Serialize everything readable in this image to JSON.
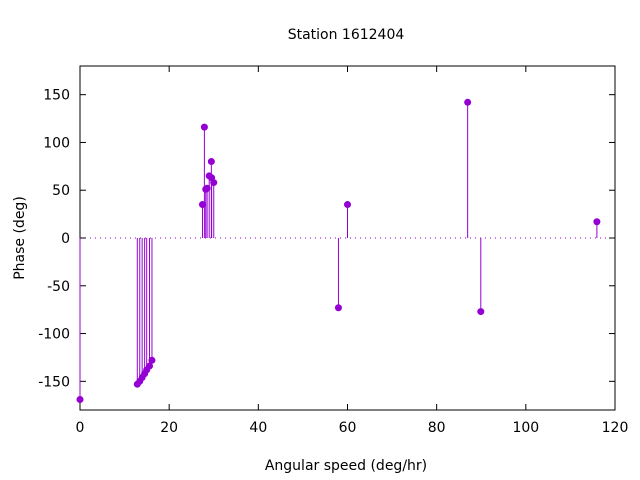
{
  "chart_data": {
    "type": "scatter",
    "style": "impulses",
    "title": "Station 1612404",
    "xlabel": "Angular speed (deg/hr)",
    "ylabel": "Phase (deg)",
    "xlim": [
      0,
      120
    ],
    "ylim": [
      -180,
      180
    ],
    "xticks": [
      0,
      20,
      40,
      60,
      80,
      100,
      120
    ],
    "yticks": [
      -150,
      -100,
      -50,
      0,
      50,
      100,
      150
    ],
    "zero_line": "dotted",
    "grid": false,
    "color": "#9400d3",
    "series": [
      {
        "x": [
          0.0,
          12.85,
          13.4,
          13.94,
          14.5,
          14.96,
          15.59,
          16.14,
          27.47,
          27.9,
          28.2,
          28.51,
          28.98,
          29.46,
          29.53,
          30.0,
          57.97,
          60.0,
          86.95,
          89.9,
          115.94
        ],
        "y": [
          -169,
          -153,
          -150,
          -146,
          -142,
          -138,
          -134,
          -128,
          35,
          116,
          51,
          52,
          65,
          80,
          63,
          58,
          -73,
          35,
          142,
          -77,
          17
        ]
      }
    ]
  }
}
